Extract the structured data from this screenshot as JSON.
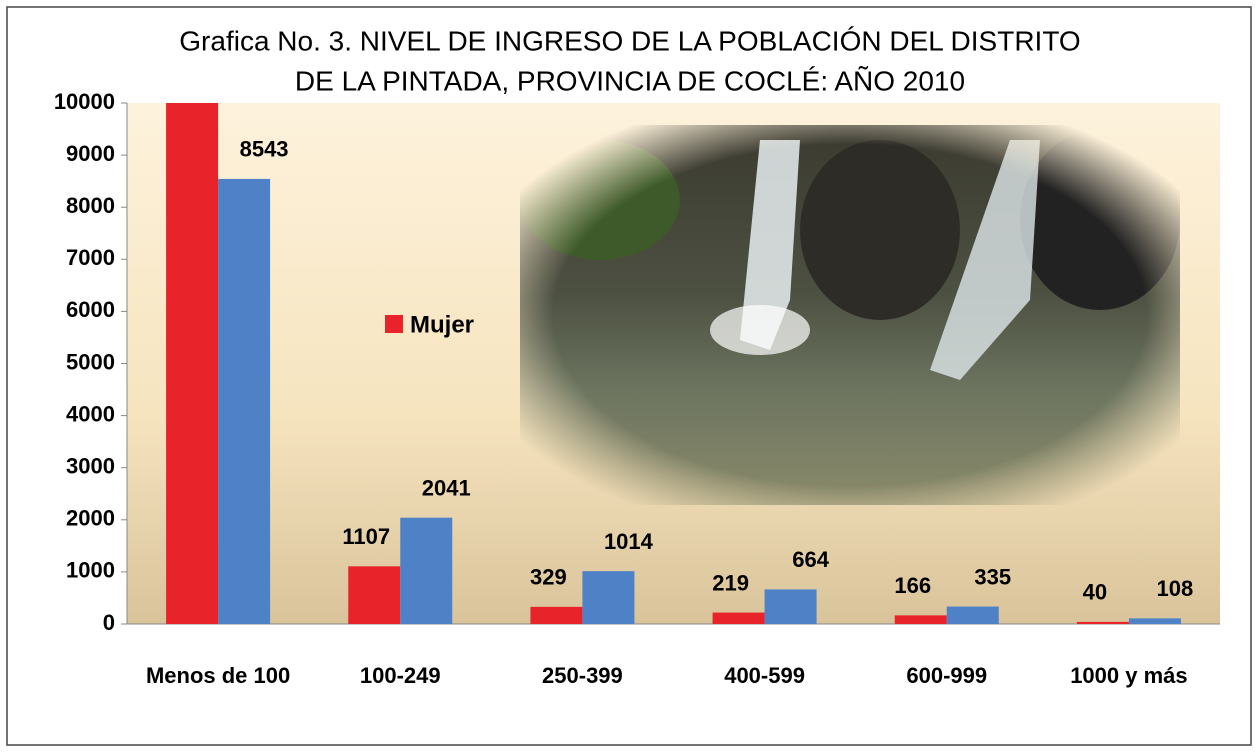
{
  "chart_data": {
    "type": "bar",
    "title": [
      "Grafica No. 3.  NIVEL DE INGRESO DE LA POBLACIÓN DEL DISTRITO",
      "DE LA PINTADA, PROVINCIA DE COCLÉ: AÑO 2010"
    ],
    "categories": [
      "Menos de 100",
      "100-249",
      "250-399",
      "400-599",
      "600-999",
      "1000 y más"
    ],
    "series": [
      {
        "name": "Mujer",
        "color": "#e8232a",
        "values": [
          10000,
          1107,
          329,
          219,
          166,
          40
        ],
        "value_labels": [
          null,
          "1107",
          "329",
          "219",
          "166",
          "40"
        ]
      },
      {
        "color": "#4f81c7",
        "values": [
          8543,
          2041,
          1014,
          664,
          335,
          108
        ],
        "value_labels": [
          "8543",
          "2041",
          "1014",
          "664",
          "335",
          "108"
        ]
      }
    ],
    "ylim": [
      0,
      10000
    ],
    "yticks": [
      0,
      1000,
      2000,
      3000,
      4000,
      5000,
      6000,
      7000,
      8000,
      9000,
      10000
    ]
  }
}
